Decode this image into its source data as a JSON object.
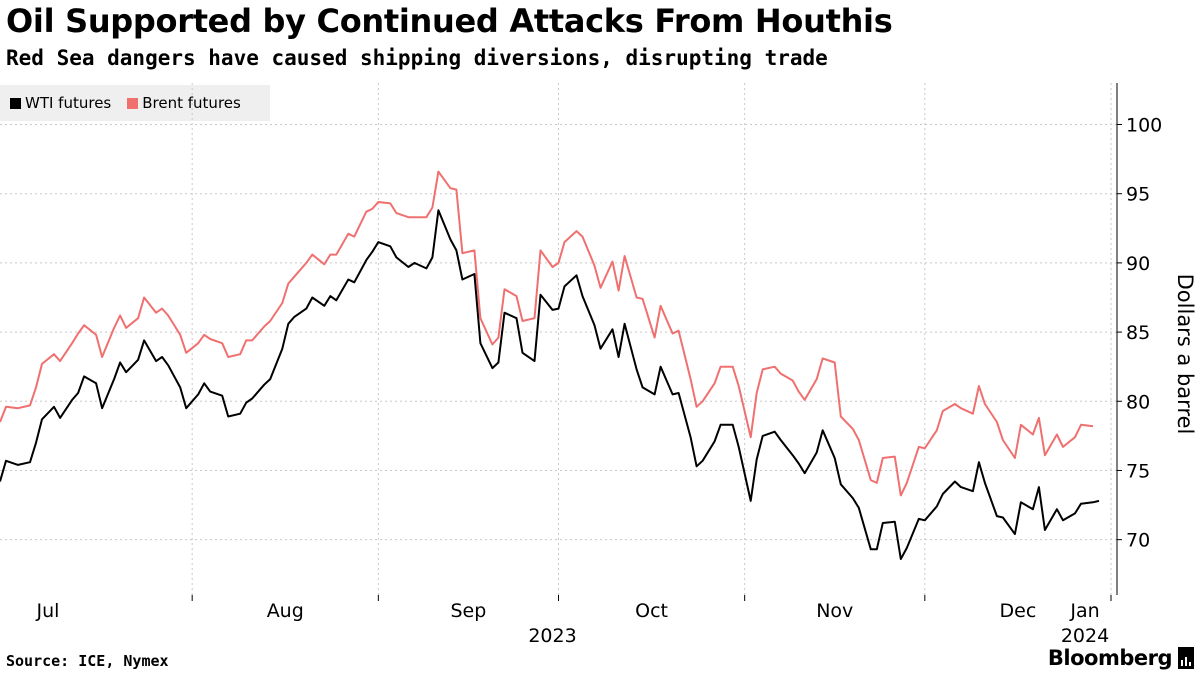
{
  "title": "Oil Supported by Continued Attacks From Houthis",
  "subtitle": "Red Sea dangers have caused shipping diversions, disrupting trade",
  "footer": {
    "source": "Source: ICE, Nymex",
    "brand": "Bloomberg"
  },
  "colors": {
    "wti": "#000000",
    "brent": "#f07070",
    "grid": "#c8c8c8"
  },
  "chart_data": {
    "type": "line",
    "title": "Oil Supported by Continued Attacks From Houthis",
    "ylabel": "Dollars a barrel",
    "xlabel": "",
    "ylim": [
      66,
      103
    ],
    "yticks": [
      70,
      75,
      80,
      85,
      90,
      95,
      100
    ],
    "x_start": "2023-06-30",
    "x_end": "2024-01-02",
    "month_ticks": [
      {
        "label": "Jul",
        "date": "2023-07-01"
      },
      {
        "label": "Aug",
        "date": "2023-08-01"
      },
      {
        "label": "Sep",
        "date": "2023-09-01"
      },
      {
        "label": "Oct",
        "date": "2023-10-01"
      },
      {
        "label": "Nov",
        "date": "2023-11-01"
      },
      {
        "label": "Dec",
        "date": "2023-12-01"
      },
      {
        "label": "Jan",
        "date": "2024-01-01"
      }
    ],
    "year_labels": [
      {
        "label": "2023",
        "date": "2023-09-30"
      },
      {
        "label": "2024",
        "date": "2024-01-01"
      }
    ],
    "legend": [
      "WTI futures",
      "Brent futures"
    ],
    "series": [
      {
        "name": "WTI futures",
        "color": "#000000",
        "points": [
          [
            "2023-06-30",
            74.2
          ],
          [
            "2023-07-01",
            75.7
          ],
          [
            "2023-07-03",
            75.4
          ],
          [
            "2023-07-05",
            75.6
          ],
          [
            "2023-07-06",
            77.0
          ],
          [
            "2023-07-07",
            78.7
          ],
          [
            "2023-07-09",
            79.6
          ],
          [
            "2023-07-10",
            78.8
          ],
          [
            "2023-07-12",
            80.1
          ],
          [
            "2023-07-13",
            80.6
          ],
          [
            "2023-07-14",
            81.8
          ],
          [
            "2023-07-16",
            81.3
          ],
          [
            "2023-07-17",
            79.5
          ],
          [
            "2023-07-19",
            81.6
          ],
          [
            "2023-07-20",
            82.8
          ],
          [
            "2023-07-21",
            82.1
          ],
          [
            "2023-07-23",
            83.0
          ],
          [
            "2023-07-24",
            84.4
          ],
          [
            "2023-07-26",
            82.9
          ],
          [
            "2023-07-27",
            83.2
          ],
          [
            "2023-07-28",
            82.6
          ],
          [
            "2023-07-30",
            81.0
          ],
          [
            "2023-07-31",
            79.5
          ],
          [
            "2023-08-02",
            80.5
          ],
          [
            "2023-08-03",
            81.3
          ],
          [
            "2023-08-04",
            80.7
          ],
          [
            "2023-08-06",
            80.4
          ],
          [
            "2023-08-07",
            78.9
          ],
          [
            "2023-08-09",
            79.1
          ],
          [
            "2023-08-10",
            79.9
          ],
          [
            "2023-08-11",
            80.2
          ],
          [
            "2023-08-13",
            81.2
          ],
          [
            "2023-08-14",
            81.6
          ],
          [
            "2023-08-16",
            83.8
          ],
          [
            "2023-08-17",
            85.6
          ],
          [
            "2023-08-18",
            86.1
          ],
          [
            "2023-08-20",
            86.7
          ],
          [
            "2023-08-21",
            87.5
          ],
          [
            "2023-08-23",
            86.9
          ],
          [
            "2023-08-24",
            87.6
          ],
          [
            "2023-08-25",
            87.3
          ],
          [
            "2023-08-27",
            88.8
          ],
          [
            "2023-08-28",
            88.6
          ],
          [
            "2023-08-30",
            90.2
          ],
          [
            "2023-08-31",
            90.8
          ],
          [
            "2023-09-01",
            91.5
          ],
          [
            "2023-09-03",
            91.2
          ],
          [
            "2023-09-04",
            90.4
          ],
          [
            "2023-09-06",
            89.7
          ],
          [
            "2023-09-07",
            90.0
          ],
          [
            "2023-09-09",
            89.6
          ],
          [
            "2023-09-10",
            90.4
          ],
          [
            "2023-09-11",
            93.8
          ],
          [
            "2023-09-13",
            91.7
          ],
          [
            "2023-09-14",
            90.9
          ],
          [
            "2023-09-15",
            88.8
          ],
          [
            "2023-09-17",
            89.2
          ],
          [
            "2023-09-18",
            84.2
          ],
          [
            "2023-09-20",
            82.4
          ],
          [
            "2023-09-21",
            82.8
          ],
          [
            "2023-09-22",
            86.4
          ],
          [
            "2023-09-24",
            86.0
          ],
          [
            "2023-09-25",
            83.5
          ],
          [
            "2023-09-27",
            82.9
          ],
          [
            "2023-09-28",
            87.7
          ],
          [
            "2023-09-30",
            86.6
          ],
          [
            "2023-10-01",
            86.7
          ],
          [
            "2023-10-02",
            88.3
          ],
          [
            "2023-10-04",
            89.1
          ],
          [
            "2023-10-05",
            87.6
          ],
          [
            "2023-10-07",
            85.5
          ],
          [
            "2023-10-08",
            83.8
          ],
          [
            "2023-10-10",
            85.2
          ],
          [
            "2023-10-11",
            83.2
          ],
          [
            "2023-10-12",
            85.6
          ],
          [
            "2023-10-14",
            82.3
          ],
          [
            "2023-10-15",
            81.0
          ],
          [
            "2023-10-17",
            80.5
          ],
          [
            "2023-10-18",
            82.5
          ],
          [
            "2023-10-20",
            80.5
          ],
          [
            "2023-10-21",
            80.6
          ],
          [
            "2023-10-23",
            77.4
          ],
          [
            "2023-10-24",
            75.3
          ],
          [
            "2023-10-25",
            75.7
          ],
          [
            "2023-10-27",
            77.1
          ],
          [
            "2023-10-28",
            78.3
          ],
          [
            "2023-10-30",
            78.3
          ],
          [
            "2023-10-31",
            76.7
          ],
          [
            "2023-11-02",
            72.8
          ],
          [
            "2023-11-03",
            75.8
          ],
          [
            "2023-11-04",
            77.5
          ],
          [
            "2023-11-06",
            77.8
          ],
          [
            "2023-11-07",
            77.2
          ],
          [
            "2023-11-09",
            76.1
          ],
          [
            "2023-11-10",
            75.5
          ],
          [
            "2023-11-11",
            74.8
          ],
          [
            "2023-11-13",
            76.3
          ],
          [
            "2023-11-14",
            77.9
          ],
          [
            "2023-11-16",
            75.9
          ],
          [
            "2023-11-17",
            74.0
          ],
          [
            "2023-11-19",
            73.0
          ],
          [
            "2023-11-20",
            72.3
          ],
          [
            "2023-11-22",
            69.3
          ],
          [
            "2023-11-23",
            69.3
          ],
          [
            "2023-11-24",
            71.2
          ],
          [
            "2023-11-26",
            71.3
          ],
          [
            "2023-11-27",
            68.6
          ],
          [
            "2023-11-28",
            69.4
          ],
          [
            "2023-11-30",
            71.5
          ],
          [
            "2023-12-01",
            71.4
          ],
          [
            "2023-12-03",
            72.4
          ],
          [
            "2023-12-04",
            73.3
          ],
          [
            "2023-12-06",
            74.2
          ],
          [
            "2023-12-07",
            73.8
          ],
          [
            "2023-12-09",
            73.5
          ],
          [
            "2023-12-10",
            75.6
          ],
          [
            "2023-12-11",
            74.1
          ],
          [
            "2023-12-13",
            71.7
          ],
          [
            "2023-12-14",
            71.6
          ],
          [
            "2023-12-16",
            70.4
          ],
          [
            "2023-12-17",
            72.7
          ],
          [
            "2023-12-19",
            72.2
          ],
          [
            "2023-12-20",
            73.8
          ],
          [
            "2023-12-21",
            70.7
          ],
          [
            "2023-12-23",
            72.2
          ],
          [
            "2023-12-24",
            71.4
          ],
          [
            "2023-12-26",
            71.9
          ],
          [
            "2023-12-27",
            72.6
          ],
          [
            "2023-12-29",
            72.7
          ],
          [
            "2023-12-30",
            72.8
          ]
        ]
      },
      {
        "name": "Brent futures",
        "color": "#f07070",
        "points": [
          [
            "2023-06-30",
            78.5
          ],
          [
            "2023-07-01",
            79.6
          ],
          [
            "2023-07-03",
            79.5
          ],
          [
            "2023-07-05",
            79.7
          ],
          [
            "2023-07-06",
            81.0
          ],
          [
            "2023-07-07",
            82.7
          ],
          [
            "2023-07-09",
            83.4
          ],
          [
            "2023-07-10",
            82.9
          ],
          [
            "2023-07-12",
            84.2
          ],
          [
            "2023-07-13",
            84.9
          ],
          [
            "2023-07-14",
            85.5
          ],
          [
            "2023-07-16",
            84.8
          ],
          [
            "2023-07-17",
            83.2
          ],
          [
            "2023-07-19",
            85.3
          ],
          [
            "2023-07-20",
            86.2
          ],
          [
            "2023-07-21",
            85.3
          ],
          [
            "2023-07-23",
            86.0
          ],
          [
            "2023-07-24",
            87.5
          ],
          [
            "2023-07-26",
            86.4
          ],
          [
            "2023-07-27",
            86.7
          ],
          [
            "2023-07-28",
            86.2
          ],
          [
            "2023-07-30",
            84.8
          ],
          [
            "2023-07-31",
            83.5
          ],
          [
            "2023-08-02",
            84.2
          ],
          [
            "2023-08-03",
            84.8
          ],
          [
            "2023-08-04",
            84.5
          ],
          [
            "2023-08-06",
            84.2
          ],
          [
            "2023-08-07",
            83.2
          ],
          [
            "2023-08-09",
            83.4
          ],
          [
            "2023-08-10",
            84.4
          ],
          [
            "2023-08-11",
            84.4
          ],
          [
            "2023-08-13",
            85.4
          ],
          [
            "2023-08-14",
            85.8
          ],
          [
            "2023-08-16",
            87.1
          ],
          [
            "2023-08-17",
            88.5
          ],
          [
            "2023-08-18",
            89.0
          ],
          [
            "2023-08-20",
            90.0
          ],
          [
            "2023-08-21",
            90.6
          ],
          [
            "2023-08-23",
            89.9
          ],
          [
            "2023-08-24",
            90.6
          ],
          [
            "2023-08-25",
            90.6
          ],
          [
            "2023-08-27",
            92.1
          ],
          [
            "2023-08-28",
            91.9
          ],
          [
            "2023-08-30",
            93.7
          ],
          [
            "2023-08-31",
            93.9
          ],
          [
            "2023-09-01",
            94.4
          ],
          [
            "2023-09-03",
            94.3
          ],
          [
            "2023-09-04",
            93.6
          ],
          [
            "2023-09-06",
            93.3
          ],
          [
            "2023-09-07",
            93.3
          ],
          [
            "2023-09-09",
            93.3
          ],
          [
            "2023-09-10",
            94.0
          ],
          [
            "2023-09-11",
            96.6
          ],
          [
            "2023-09-13",
            95.4
          ],
          [
            "2023-09-14",
            95.3
          ],
          [
            "2023-09-15",
            90.7
          ],
          [
            "2023-09-17",
            90.9
          ],
          [
            "2023-09-18",
            86.0
          ],
          [
            "2023-09-20",
            84.1
          ],
          [
            "2023-09-21",
            84.6
          ],
          [
            "2023-09-22",
            88.1
          ],
          [
            "2023-09-24",
            87.6
          ],
          [
            "2023-09-25",
            85.8
          ],
          [
            "2023-09-27",
            86.0
          ],
          [
            "2023-09-28",
            90.9
          ],
          [
            "2023-09-30",
            89.7
          ],
          [
            "2023-10-01",
            90.0
          ],
          [
            "2023-10-02",
            91.5
          ],
          [
            "2023-10-04",
            92.3
          ],
          [
            "2023-10-05",
            91.9
          ],
          [
            "2023-10-07",
            89.8
          ],
          [
            "2023-10-08",
            88.2
          ],
          [
            "2023-10-10",
            90.1
          ],
          [
            "2023-10-11",
            88.0
          ],
          [
            "2023-10-12",
            90.5
          ],
          [
            "2023-10-14",
            87.5
          ],
          [
            "2023-10-15",
            87.4
          ],
          [
            "2023-10-17",
            84.6
          ],
          [
            "2023-10-18",
            86.9
          ],
          [
            "2023-10-20",
            84.9
          ],
          [
            "2023-10-21",
            85.1
          ],
          [
            "2023-10-23",
            81.6
          ],
          [
            "2023-10-24",
            79.6
          ],
          [
            "2023-10-25",
            80.0
          ],
          [
            "2023-10-27",
            81.3
          ],
          [
            "2023-10-28",
            82.5
          ],
          [
            "2023-10-30",
            82.5
          ],
          [
            "2023-10-31",
            81.1
          ],
          [
            "2023-11-02",
            77.4
          ],
          [
            "2023-11-03",
            80.6
          ],
          [
            "2023-11-04",
            82.3
          ],
          [
            "2023-11-06",
            82.5
          ],
          [
            "2023-11-07",
            82.0
          ],
          [
            "2023-11-09",
            81.5
          ],
          [
            "2023-11-10",
            80.7
          ],
          [
            "2023-11-11",
            80.1
          ],
          [
            "2023-11-13",
            81.6
          ],
          [
            "2023-11-14",
            83.1
          ],
          [
            "2023-11-16",
            82.8
          ],
          [
            "2023-11-17",
            78.9
          ],
          [
            "2023-11-19",
            78.0
          ],
          [
            "2023-11-20",
            77.2
          ],
          [
            "2023-11-22",
            74.3
          ],
          [
            "2023-11-23",
            74.1
          ],
          [
            "2023-11-24",
            75.9
          ],
          [
            "2023-11-26",
            76.0
          ],
          [
            "2023-11-27",
            73.2
          ],
          [
            "2023-11-28",
            74.1
          ],
          [
            "2023-11-30",
            76.7
          ],
          [
            "2023-12-01",
            76.6
          ],
          [
            "2023-12-03",
            77.9
          ],
          [
            "2023-12-04",
            79.3
          ],
          [
            "2023-12-06",
            79.8
          ],
          [
            "2023-12-07",
            79.5
          ],
          [
            "2023-12-09",
            79.1
          ],
          [
            "2023-12-10",
            81.1
          ],
          [
            "2023-12-11",
            79.8
          ],
          [
            "2023-12-13",
            78.5
          ],
          [
            "2023-12-14",
            77.2
          ],
          [
            "2023-12-16",
            75.9
          ],
          [
            "2023-12-17",
            78.3
          ],
          [
            "2023-12-19",
            77.6
          ],
          [
            "2023-12-20",
            78.8
          ],
          [
            "2023-12-21",
            76.1
          ],
          [
            "2023-12-23",
            77.6
          ],
          [
            "2023-12-24",
            76.7
          ],
          [
            "2023-12-26",
            77.4
          ],
          [
            "2023-12-27",
            78.3
          ],
          [
            "2023-12-29",
            78.2
          ]
        ]
      }
    ]
  }
}
